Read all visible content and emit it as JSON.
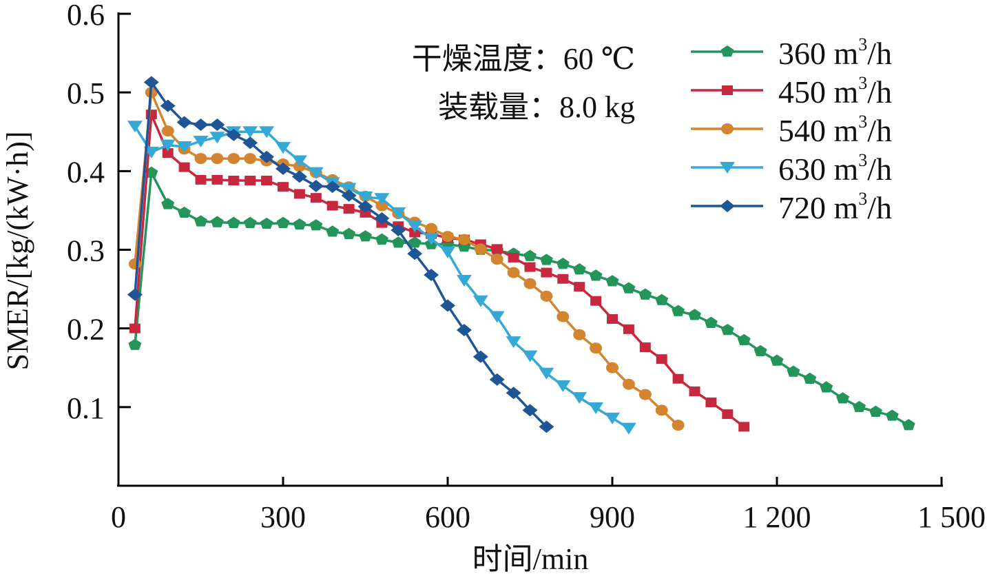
{
  "chart_data": {
    "type": "line",
    "title": "",
    "xlabel": "时间/min",
    "ylabel": "SMER/[kg/(kW·h)]",
    "xlim": [
      0,
      1500
    ],
    "ylim": [
      0,
      0.6
    ],
    "xticks": [
      0,
      300,
      600,
      900,
      1200,
      1500
    ],
    "xtick_labels": [
      "0",
      "300",
      "600",
      "900",
      "1 200",
      "1 500"
    ],
    "yticks": [
      0.1,
      0.2,
      0.3,
      0.4,
      0.5,
      0.6
    ],
    "ytick_labels": [
      "0.1",
      "0.2",
      "0.3",
      "0.4",
      "0.5",
      "0.6"
    ],
    "grid": false,
    "legend_position": "top-right",
    "annotations": [
      "干燥温度：60 ℃",
      "装载量：8.0 kg"
    ],
    "series": [
      {
        "name": "360 m³/h",
        "label_num": "360",
        "color": "#23955a",
        "marker": "pentagon",
        "x": [
          30,
          60,
          90,
          120,
          150,
          180,
          210,
          240,
          270,
          300,
          330,
          360,
          390,
          420,
          450,
          480,
          510,
          540,
          570,
          600,
          630,
          660,
          690,
          720,
          750,
          780,
          810,
          840,
          870,
          900,
          930,
          960,
          990,
          1020,
          1050,
          1080,
          1110,
          1140,
          1170,
          1200,
          1230,
          1260,
          1290,
          1320,
          1350,
          1380,
          1410,
          1440
        ],
        "values": [
          0.179,
          0.398,
          0.358,
          0.347,
          0.336,
          0.335,
          0.334,
          0.334,
          0.333,
          0.334,
          0.332,
          0.331,
          0.323,
          0.32,
          0.317,
          0.313,
          0.309,
          0.309,
          0.307,
          0.307,
          0.304,
          0.3,
          0.299,
          0.295,
          0.292,
          0.287,
          0.282,
          0.275,
          0.267,
          0.26,
          0.251,
          0.243,
          0.236,
          0.222,
          0.217,
          0.207,
          0.198,
          0.185,
          0.171,
          0.159,
          0.145,
          0.136,
          0.125,
          0.111,
          0.1,
          0.094,
          0.089,
          0.077
        ]
      },
      {
        "name": "450 m³/h",
        "label_num": "450",
        "color": "#c8283f",
        "marker": "square",
        "x": [
          30,
          60,
          90,
          120,
          150,
          180,
          210,
          240,
          270,
          300,
          330,
          360,
          390,
          420,
          450,
          480,
          510,
          540,
          570,
          600,
          630,
          660,
          690,
          720,
          750,
          780,
          810,
          840,
          870,
          900,
          930,
          960,
          990,
          1020,
          1050,
          1080,
          1110,
          1140
        ],
        "values": [
          0.2,
          0.472,
          0.423,
          0.405,
          0.389,
          0.389,
          0.388,
          0.388,
          0.388,
          0.38,
          0.371,
          0.366,
          0.356,
          0.352,
          0.347,
          0.334,
          0.33,
          0.322,
          0.32,
          0.315,
          0.313,
          0.307,
          0.301,
          0.29,
          0.278,
          0.271,
          0.263,
          0.253,
          0.235,
          0.212,
          0.199,
          0.176,
          0.161,
          0.136,
          0.12,
          0.106,
          0.091,
          0.075
        ]
      },
      {
        "name": "540 m³/h",
        "label_num": "540",
        "color": "#d4832e",
        "marker": "circle",
        "x": [
          30,
          60,
          90,
          120,
          150,
          180,
          210,
          240,
          270,
          300,
          330,
          360,
          390,
          420,
          450,
          480,
          510,
          540,
          570,
          600,
          630,
          660,
          690,
          720,
          750,
          780,
          810,
          840,
          870,
          900,
          930,
          960,
          990,
          1020
        ],
        "values": [
          0.282,
          0.5,
          0.451,
          0.428,
          0.416,
          0.416,
          0.416,
          0.416,
          0.413,
          0.409,
          0.406,
          0.398,
          0.389,
          0.38,
          0.368,
          0.356,
          0.346,
          0.335,
          0.327,
          0.317,
          0.313,
          0.301,
          0.288,
          0.271,
          0.257,
          0.241,
          0.215,
          0.192,
          0.175,
          0.15,
          0.129,
          0.116,
          0.096,
          0.077
        ]
      },
      {
        "name": "630 m³/h",
        "label_num": "630",
        "color": "#35a9d6",
        "marker": "triangle-down",
        "x": [
          30,
          60,
          90,
          120,
          150,
          180,
          210,
          240,
          270,
          300,
          330,
          360,
          390,
          420,
          450,
          480,
          510,
          540,
          570,
          600,
          630,
          660,
          690,
          720,
          750,
          780,
          810,
          840,
          870,
          900,
          930
        ],
        "values": [
          0.457,
          0.424,
          0.433,
          0.431,
          0.438,
          0.443,
          0.45,
          0.45,
          0.45,
          0.43,
          0.413,
          0.398,
          0.385,
          0.378,
          0.367,
          0.365,
          0.347,
          0.33,
          0.314,
          0.297,
          0.261,
          0.235,
          0.215,
          0.183,
          0.165,
          0.143,
          0.127,
          0.112,
          0.099,
          0.086,
          0.073
        ]
      },
      {
        "name": "720 m³/h",
        "label_num": "720",
        "color": "#1f5595",
        "marker": "diamond",
        "x": [
          30,
          60,
          90,
          120,
          150,
          180,
          210,
          240,
          270,
          300,
          330,
          360,
          390,
          420,
          450,
          480,
          510,
          540,
          570,
          600,
          630,
          660,
          690,
          720,
          750,
          780
        ],
        "values": [
          0.243,
          0.513,
          0.483,
          0.462,
          0.459,
          0.459,
          0.446,
          0.436,
          0.418,
          0.403,
          0.393,
          0.381,
          0.38,
          0.369,
          0.355,
          0.34,
          0.325,
          0.295,
          0.268,
          0.229,
          0.198,
          0.164,
          0.135,
          0.118,
          0.096,
          0.075
        ]
      }
    ],
    "legend_unit": "m",
    "legend_sup": "3",
    "legend_suffix": "/h"
  }
}
